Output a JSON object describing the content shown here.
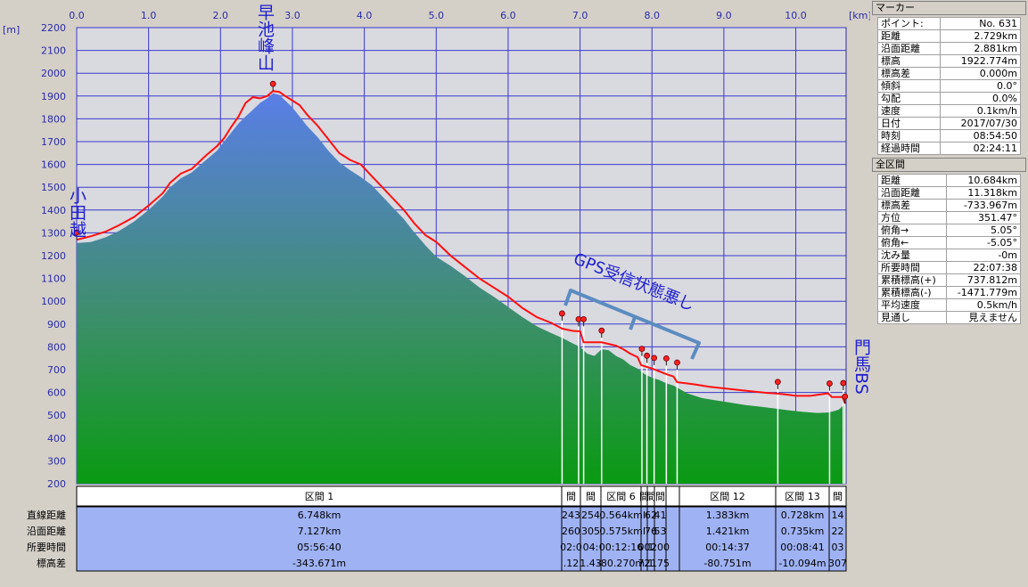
{
  "chart_data": {
    "type": "area",
    "xunit": "[km]",
    "yunit": "[m]",
    "xlim": [
      0.0,
      10.8
    ],
    "ylim": [
      200,
      2200
    ],
    "xticks": [
      "0.0",
      "1.0",
      "2.0",
      "3.0",
      "4.0",
      "5.0",
      "6.0",
      "7.0",
      "8.0",
      "9.0",
      "10.0"
    ],
    "yticks": [
      "2200",
      "2100",
      "2000",
      "1900",
      "1800",
      "1700",
      "1600",
      "1500",
      "1400",
      "1300",
      "1200",
      "1100",
      "1000",
      "900",
      "800",
      "700",
      "600",
      "500",
      "400",
      "300",
      "200"
    ],
    "terrain": [
      [
        0,
        1255
      ],
      [
        0.2,
        1260
      ],
      [
        0.4,
        1280
      ],
      [
        0.6,
        1310
      ],
      [
        0.8,
        1350
      ],
      [
        1.0,
        1400
      ],
      [
        1.2,
        1460
      ],
      [
        1.3,
        1500
      ],
      [
        1.45,
        1540
      ],
      [
        1.6,
        1565
      ],
      [
        1.8,
        1620
      ],
      [
        1.95,
        1660
      ],
      [
        2.05,
        1700
      ],
      [
        2.15,
        1740
      ],
      [
        2.25,
        1780
      ],
      [
        2.35,
        1810
      ],
      [
        2.45,
        1840
      ],
      [
        2.55,
        1870
      ],
      [
        2.65,
        1890
      ],
      [
        2.73,
        1912
      ],
      [
        2.82,
        1905
      ],
      [
        2.9,
        1880
      ],
      [
        3.0,
        1850
      ],
      [
        3.1,
        1810
      ],
      [
        3.2,
        1770
      ],
      [
        3.35,
        1720
      ],
      [
        3.5,
        1660
      ],
      [
        3.65,
        1610
      ],
      [
        3.8,
        1575
      ],
      [
        3.95,
        1545
      ],
      [
        4.1,
        1510
      ],
      [
        4.25,
        1460
      ],
      [
        4.4,
        1410
      ],
      [
        4.55,
        1360
      ],
      [
        4.7,
        1300
      ],
      [
        4.85,
        1245
      ],
      [
        5.0,
        1195
      ],
      [
        5.2,
        1155
      ],
      [
        5.4,
        1110
      ],
      [
        5.6,
        1060
      ],
      [
        5.8,
        1020
      ],
      [
        6.0,
        975
      ],
      [
        6.2,
        930
      ],
      [
        6.4,
        890
      ],
      [
        6.6,
        860
      ],
      [
        6.75,
        840
      ],
      [
        6.9,
        815
      ],
      [
        7.0,
        800
      ],
      [
        7.1,
        770
      ],
      [
        7.2,
        760
      ],
      [
        7.3,
        790
      ],
      [
        7.4,
        785
      ],
      [
        7.5,
        760
      ],
      [
        7.6,
        745
      ],
      [
        7.7,
        720
      ],
      [
        7.8,
        705
      ],
      [
        7.9,
        680
      ],
      [
        8.0,
        665
      ],
      [
        8.1,
        655
      ],
      [
        8.2,
        640
      ],
      [
        8.3,
        630
      ],
      [
        8.5,
        595
      ],
      [
        8.7,
        575
      ],
      [
        8.9,
        565
      ],
      [
        9.1,
        555
      ],
      [
        9.3,
        545
      ],
      [
        9.5,
        538
      ],
      [
        9.7,
        530
      ],
      [
        9.9,
        522
      ],
      [
        10.1,
        515
      ],
      [
        10.3,
        510
      ],
      [
        10.45,
        512
      ],
      [
        10.55,
        520
      ],
      [
        10.6,
        525
      ],
      [
        10.65,
        540
      ],
      [
        10.684,
        545
      ]
    ],
    "track": [
      [
        0,
        1270
      ],
      [
        0.2,
        1285
      ],
      [
        0.4,
        1305
      ],
      [
        0.6,
        1335
      ],
      [
        0.8,
        1370
      ],
      [
        1.0,
        1420
      ],
      [
        1.2,
        1475
      ],
      [
        1.3,
        1520
      ],
      [
        1.45,
        1560
      ],
      [
        1.6,
        1580
      ],
      [
        1.8,
        1640
      ],
      [
        1.95,
        1680
      ],
      [
        2.05,
        1715
      ],
      [
        2.15,
        1765
      ],
      [
        2.25,
        1810
      ],
      [
        2.35,
        1870
      ],
      [
        2.45,
        1895
      ],
      [
        2.55,
        1890
      ],
      [
        2.65,
        1900
      ],
      [
        2.73,
        1922
      ],
      [
        2.82,
        1918
      ],
      [
        2.9,
        1900
      ],
      [
        3.0,
        1880
      ],
      [
        3.1,
        1860
      ],
      [
        3.2,
        1820
      ],
      [
        3.35,
        1770
      ],
      [
        3.5,
        1710
      ],
      [
        3.65,
        1650
      ],
      [
        3.8,
        1620
      ],
      [
        3.95,
        1600
      ],
      [
        4.1,
        1550
      ],
      [
        4.25,
        1500
      ],
      [
        4.4,
        1450
      ],
      [
        4.55,
        1400
      ],
      [
        4.7,
        1340
      ],
      [
        4.85,
        1290
      ],
      [
        5.0,
        1260
      ],
      [
        5.2,
        1200
      ],
      [
        5.4,
        1150
      ],
      [
        5.6,
        1100
      ],
      [
        5.8,
        1060
      ],
      [
        6.0,
        1020
      ],
      [
        6.2,
        970
      ],
      [
        6.4,
        930
      ],
      [
        6.6,
        905
      ],
      [
        6.75,
        880
      ],
      [
        6.9,
        870
      ],
      [
        7.0,
        868
      ],
      [
        7.05,
        820
      ],
      [
        7.3,
        820
      ],
      [
        7.5,
        805
      ],
      [
        7.6,
        790
      ],
      [
        7.7,
        770
      ],
      [
        7.8,
        755
      ],
      [
        7.85,
        720
      ],
      [
        8.0,
        705
      ],
      [
        8.2,
        680
      ],
      [
        8.3,
        670
      ],
      [
        8.35,
        645
      ],
      [
        8.6,
        635
      ],
      [
        8.8,
        625
      ],
      [
        9.0,
        618
      ],
      [
        9.3,
        608
      ],
      [
        9.6,
        598
      ],
      [
        9.75,
        595
      ],
      [
        9.9,
        590
      ],
      [
        10.0,
        585
      ],
      [
        10.2,
        585
      ],
      [
        10.3,
        590
      ],
      [
        10.45,
        596
      ],
      [
        10.5,
        580
      ],
      [
        10.6,
        580
      ],
      [
        10.65,
        580
      ],
      [
        10.684,
        551
      ]
    ],
    "waypoints": [
      [
        0.0,
        1270
      ],
      [
        2.73,
        1922
      ],
      [
        6.75,
        915
      ],
      [
        6.98,
        890
      ],
      [
        7.05,
        890
      ],
      [
        7.3,
        840
      ],
      [
        7.86,
        760
      ],
      [
        7.93,
        730
      ],
      [
        8.03,
        720
      ],
      [
        8.2,
        718
      ],
      [
        8.35,
        700
      ],
      [
        9.75,
        615
      ],
      [
        10.47,
        608
      ],
      [
        10.66,
        610
      ],
      [
        10.684,
        551
      ]
    ],
    "annotations": {
      "odagoe": "小田越",
      "hayachine": "早池峰山",
      "kadoma": "門馬BS",
      "gps": "GPS受信状態悪し"
    },
    "sections": {
      "row_labels": [
        "直線距離",
        "沿面距離",
        "所要時間",
        "標高差"
      ],
      "headers": [
        "区間 1",
        "間",
        "間",
        "区間 6",
        "間",
        "間",
        "間",
        "区間 12",
        "区間 13",
        "間"
      ],
      "values": [
        [
          "6.748km",
          "7.127km",
          "05:56:40",
          "-343.671m"
        ],
        [
          "243",
          "260",
          "02:0",
          ".12"
        ],
        [
          "254",
          "305",
          "04:",
          "1.43"
        ],
        [
          "0.564km",
          "0.575km",
          "00:12:16",
          "-80.270m"
        ],
        [
          "I",
          "I",
          "00",
          "72"
        ],
        [
          "62",
          "76",
          "1",
          "1"
        ],
        [
          "41",
          "53",
          "200",
          "175"
        ],
        [
          "1.383km",
          "1.421km",
          "00:14:37",
          "-80.751m"
        ],
        [
          "0.728km",
          "0.735km",
          "00:08:41",
          "-10.094m"
        ],
        [
          "14",
          "22",
          "03",
          "307"
        ]
      ]
    }
  },
  "marker_panel": {
    "title": "マーカー",
    "rows": [
      [
        "ポイント:",
        "No. 631"
      ],
      [
        "距離",
        "2.729km"
      ],
      [
        "沿面距離",
        "2.881km"
      ],
      [
        "標高",
        "1922.774m"
      ],
      [
        "標高差",
        "0.000m"
      ],
      [
        "傾斜",
        "0.0°"
      ],
      [
        "勾配",
        "0.0%"
      ],
      [
        "速度",
        "0.1km/h"
      ],
      [
        "日付",
        "2017/07/30"
      ],
      [
        "時刻",
        "08:54:50"
      ],
      [
        "経過時間",
        "02:24:11"
      ]
    ]
  },
  "total_panel": {
    "title": "全区間",
    "rows": [
      [
        "距離",
        "10.684km"
      ],
      [
        "沿面距離",
        "11.318km"
      ],
      [
        "標高差",
        "-733.967m"
      ],
      [
        "方位",
        "351.47°"
      ],
      [
        "俯角→",
        "5.05°"
      ],
      [
        "俯角←",
        "-5.05°"
      ],
      [
        "沈み量",
        "-0m"
      ],
      [
        "所要時間",
        "22:07:38"
      ],
      [
        "累積標高(+)",
        "737.812m"
      ],
      [
        "累積標高(-)",
        "-1471.779m"
      ],
      [
        "平均速度",
        "0.5km/h"
      ],
      [
        "見通し",
        "見えません"
      ]
    ]
  }
}
